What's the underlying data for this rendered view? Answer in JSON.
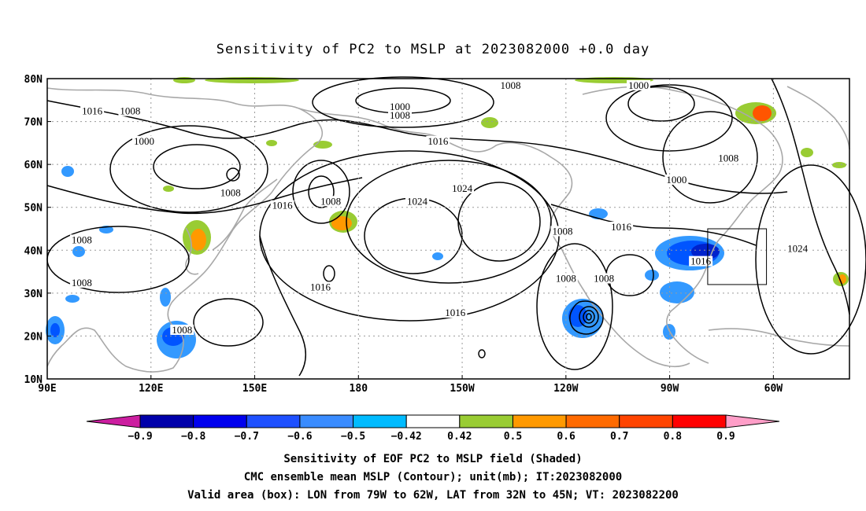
{
  "title": "Sensitivity of PC2 to MSLP at 2023082000 +0.0 day",
  "map": {
    "lat_labels": [
      "80N",
      "70N",
      "60N",
      "50N",
      "40N",
      "30N",
      "20N",
      "10N"
    ],
    "lon_labels": [
      "90E",
      "120E",
      "150E",
      "180",
      "150W",
      "120W",
      "90W",
      "60W"
    ],
    "contour_labels": [
      {
        "text": "1016",
        "lon": 103,
        "lat": 72
      },
      {
        "text": "1008",
        "lon": 114,
        "lat": 72
      },
      {
        "text": "1000",
        "lon": 118,
        "lat": 65
      },
      {
        "text": "1008",
        "lon": 143,
        "lat": 53
      },
      {
        "text": "1016",
        "lon": 158,
        "lat": 50
      },
      {
        "text": "1008",
        "lon": 100,
        "lat": 42
      },
      {
        "text": "1008",
        "lon": 100,
        "lat": 32
      },
      {
        "text": "1016",
        "lon": 169,
        "lat": 31
      },
      {
        "text": "1008",
        "lon": 129,
        "lat": 21
      },
      {
        "text": "1008",
        "lon": 172,
        "lat": 51
      },
      {
        "text": "1000",
        "lon": -168,
        "lat": 73
      },
      {
        "text": "1008",
        "lon": -168,
        "lat": 71
      },
      {
        "text": "1016",
        "lon": -157,
        "lat": 65
      },
      {
        "text": "1024",
        "lon": -150,
        "lat": 54
      },
      {
        "text": "1024",
        "lon": -163,
        "lat": 51
      },
      {
        "text": "1008",
        "lon": -136,
        "lat": 78
      },
      {
        "text": "1000",
        "lon": -99,
        "lat": 78
      },
      {
        "text": "1008",
        "lon": -121,
        "lat": 44
      },
      {
        "text": "1016",
        "lon": -104,
        "lat": 45
      },
      {
        "text": "1008",
        "lon": -120,
        "lat": 33
      },
      {
        "text": "1008",
        "lon": -109,
        "lat": 33
      },
      {
        "text": "1000",
        "lon": -88,
        "lat": 56
      },
      {
        "text": "1008",
        "lon": -73,
        "lat": 61
      },
      {
        "text": "1016",
        "lon": -81,
        "lat": 37
      },
      {
        "text": "1024",
        "lon": -53,
        "lat": 40
      },
      {
        "text": "1016",
        "lon": -152,
        "lat": 25
      }
    ],
    "valid_box": {
      "lon_from": -79,
      "lon_to": -62,
      "lat_from": 32,
      "lat_to": 45
    },
    "colors": {
      "coast": "#a8a8a8",
      "contour": "#000000",
      "green": "#99cc33",
      "orange": "#ff9900",
      "red_orange": "#ff5500",
      "light_blue": "#3399ff",
      "blue": "#0055ff",
      "dark_blue": "#0022cc"
    }
  },
  "colorbar": {
    "tick_labels": [
      "-0.9",
      "-0.8",
      "-0.7",
      "-0.6",
      "-0.5",
      "-0.42",
      "0.42",
      "0.5",
      "0.6",
      "0.7",
      "0.8",
      "0.9"
    ],
    "colors": [
      "#cc1ea0",
      "#0000aa",
      "#0000ee",
      "#1e50ff",
      "#3a8cff",
      "#00bbff",
      "#ffffff",
      "#99cc33",
      "#ff9900",
      "#ff6a00",
      "#ff4400",
      "#ff0000",
      "#ff9ec8"
    ]
  },
  "captions": [
    "Sensitivity of EOF PC2 to MSLP field (Shaded)",
    "CMC ensemble mean MSLP (Contour); unit(mb); IT:2023082000",
    "Valid area (box): LON from 79W to 62W, LAT from 32N to 45N; VT: 2023082200"
  ]
}
